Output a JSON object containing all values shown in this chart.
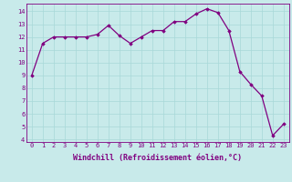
{
  "x": [
    0,
    1,
    2,
    3,
    4,
    5,
    6,
    7,
    8,
    9,
    10,
    11,
    12,
    13,
    14,
    15,
    16,
    17,
    18,
    19,
    20,
    21,
    22,
    23
  ],
  "y": [
    9.0,
    11.5,
    12.0,
    12.0,
    12.0,
    12.0,
    12.2,
    12.9,
    12.1,
    11.5,
    12.0,
    12.5,
    12.5,
    13.2,
    13.2,
    13.8,
    14.2,
    13.9,
    12.5,
    9.3,
    8.3,
    7.4,
    4.3,
    5.2
  ],
  "line_color": "#800080",
  "marker": "D",
  "marker_size": 1.8,
  "bg_color": "#c8eaea",
  "grid_color": "#a8d8d8",
  "xlabel": "Windchill (Refroidissement éolien,°C)",
  "xlim": [
    -0.5,
    23.5
  ],
  "ylim": [
    3.8,
    14.6
  ],
  "yticks": [
    4,
    5,
    6,
    7,
    8,
    9,
    10,
    11,
    12,
    13,
    14
  ],
  "xticks": [
    0,
    1,
    2,
    3,
    4,
    5,
    6,
    7,
    8,
    9,
    10,
    11,
    12,
    13,
    14,
    15,
    16,
    17,
    18,
    19,
    20,
    21,
    22,
    23
  ],
  "tick_fontsize": 5.0,
  "xlabel_fontsize": 6.0,
  "line_width": 0.9
}
